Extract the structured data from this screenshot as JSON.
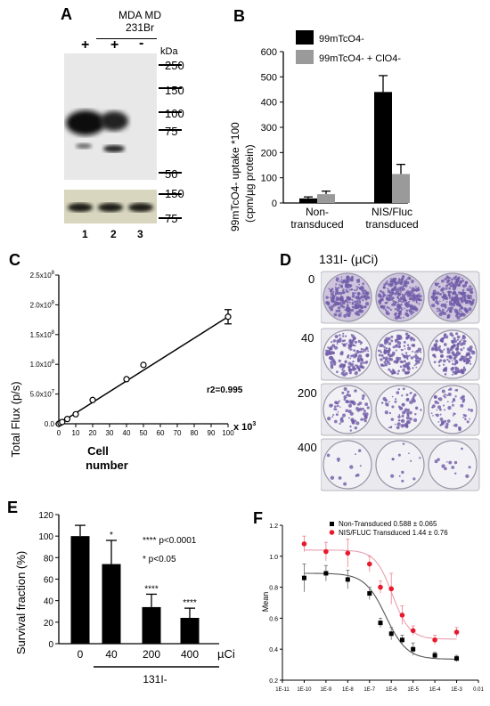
{
  "panels": {
    "A": {
      "label": "A",
      "cell_line": [
        "MDA MD",
        "231Br"
      ],
      "lane_signs": [
        "+",
        "+",
        "-"
      ],
      "kda_label": "kDa",
      "mw_markers": [
        "250",
        "150",
        "100",
        "75",
        "50"
      ],
      "lower_markers": [
        "150",
        "75"
      ],
      "lane_numbers": [
        "1",
        "2",
        "3"
      ]
    },
    "B": {
      "label": "B",
      "legend": [
        "99mTcO4-",
        "99mTcO4- + ClO4-"
      ],
      "ylabel_line1": "99mTcO4- uptake *100",
      "ylabel_line2": "(cpm/µg protein)",
      "yticks": [
        "0",
        "100",
        "200",
        "300",
        "400",
        "500",
        "600"
      ],
      "categories": [
        [
          "Non-",
          "transduced"
        ],
        [
          "NIS/Fluc",
          "transduced"
        ]
      ]
    },
    "C": {
      "label": "C",
      "ylabel": "Total Flux (p/s)",
      "yticks": [
        "0.0",
        "5.0x10",
        "1.0x10",
        "1.5x10",
        "2.0x10",
        "2.5x10"
      ],
      "yticks_exp": [
        "",
        "7",
        "8",
        "8",
        "8",
        "8"
      ],
      "xticks": [
        "0",
        "10",
        "20",
        "30",
        "40",
        "50",
        "60",
        "70",
        "80",
        "90",
        "100"
      ],
      "xunit": "x 10",
      "xunit_exp": "3",
      "xlabel_line1": "Cell",
      "xlabel_line2": "number",
      "r2": "r2=0.995"
    },
    "D": {
      "label": "D",
      "title": "131I- (µCi)",
      "doses": [
        "0",
        "40",
        "200",
        "400"
      ]
    },
    "E": {
      "label": "E",
      "ylabel": "Survival fraction (%)",
      "yticks": [
        "0",
        "20",
        "40",
        "60",
        "80",
        "100",
        "120"
      ],
      "categories": [
        "0",
        "40",
        "200",
        "400"
      ],
      "unit": "µCi",
      "isotope": "131I-",
      "stars": [
        "",
        "*",
        "****",
        "****"
      ],
      "sig_lines": [
        "**** p<0.0001",
        "* p<0.05"
      ]
    },
    "F": {
      "label": "F",
      "ylabel": "Mean",
      "yticks": [
        "0.2",
        "0.4",
        "0.6",
        "0.8",
        "1.0",
        "1.2"
      ],
      "xticks": [
        "1E-11",
        "1E-10",
        "1E-9",
        "1E-8",
        "1E-7",
        "1E-6",
        "1E-5",
        "1E-4",
        "1E-3",
        "0.01"
      ],
      "legend": [
        "Non-Transduced  0.588 ± 0.065",
        "NIS/FLUC Transduced  1.44 ± 0.76"
      ]
    }
  },
  "chart_data": [
    {
      "panel": "B",
      "type": "bar",
      "categories": [
        "Non-transduced",
        "NIS/Fluc transduced"
      ],
      "series": [
        {
          "name": "99mTcO4-",
          "color": "#000000",
          "values": [
            18,
            440
          ],
          "errors": [
            6,
            65
          ]
        },
        {
          "name": "99mTcO4- + ClO4-",
          "color": "#9a9a9a",
          "values": [
            35,
            115
          ],
          "errors": [
            12,
            38
          ]
        }
      ],
      "ylim": [
        0,
        600
      ]
    },
    {
      "panel": "C",
      "type": "scatter",
      "x": [
        0,
        1,
        2,
        5,
        10,
        20,
        40,
        50,
        100
      ],
      "y": [
        0,
        1500000,
        3000000,
        8000000,
        16000000,
        40000000,
        75000000,
        99000000,
        180000000
      ],
      "yerr_last": 12000000,
      "xlim": [
        0,
        100
      ],
      "ylim": [
        0,
        250000000
      ]
    },
    {
      "panel": "E",
      "type": "bar",
      "categories": [
        "0",
        "40",
        "200",
        "400"
      ],
      "values": [
        100,
        74,
        34,
        24
      ],
      "errors": [
        10,
        22,
        12,
        9
      ],
      "ylim": [
        0,
        120
      ]
    },
    {
      "panel": "F",
      "type": "scatter",
      "x_log10": [
        -10,
        -9,
        -8,
        -7,
        -6.5,
        -6,
        -5.5,
        -5,
        -4,
        -3
      ],
      "series": [
        {
          "name": "Non-Transduced",
          "color": "#000000",
          "values": [
            0.86,
            0.89,
            0.85,
            0.76,
            0.57,
            0.5,
            0.46,
            0.4,
            0.36,
            0.34
          ],
          "errors": [
            0.09,
            0.05,
            0.06,
            0.04,
            0.03,
            0.04,
            0.03,
            0.04,
            0.02,
            0.02
          ]
        },
        {
          "name": "NIS/FLUC Transduced",
          "color": "#e8192c",
          "values": [
            1.08,
            1.03,
            1.02,
            0.95,
            0.8,
            0.79,
            0.62,
            0.52,
            0.46,
            0.51
          ],
          "errors": [
            0.05,
            0.06,
            0.09,
            0.05,
            0.04,
            0.1,
            0.06,
            0.03,
            0.03,
            0.03
          ]
        }
      ],
      "xlim_log10": [
        -11,
        -2
      ],
      "ylim": [
        0.2,
        1.2
      ]
    }
  ]
}
